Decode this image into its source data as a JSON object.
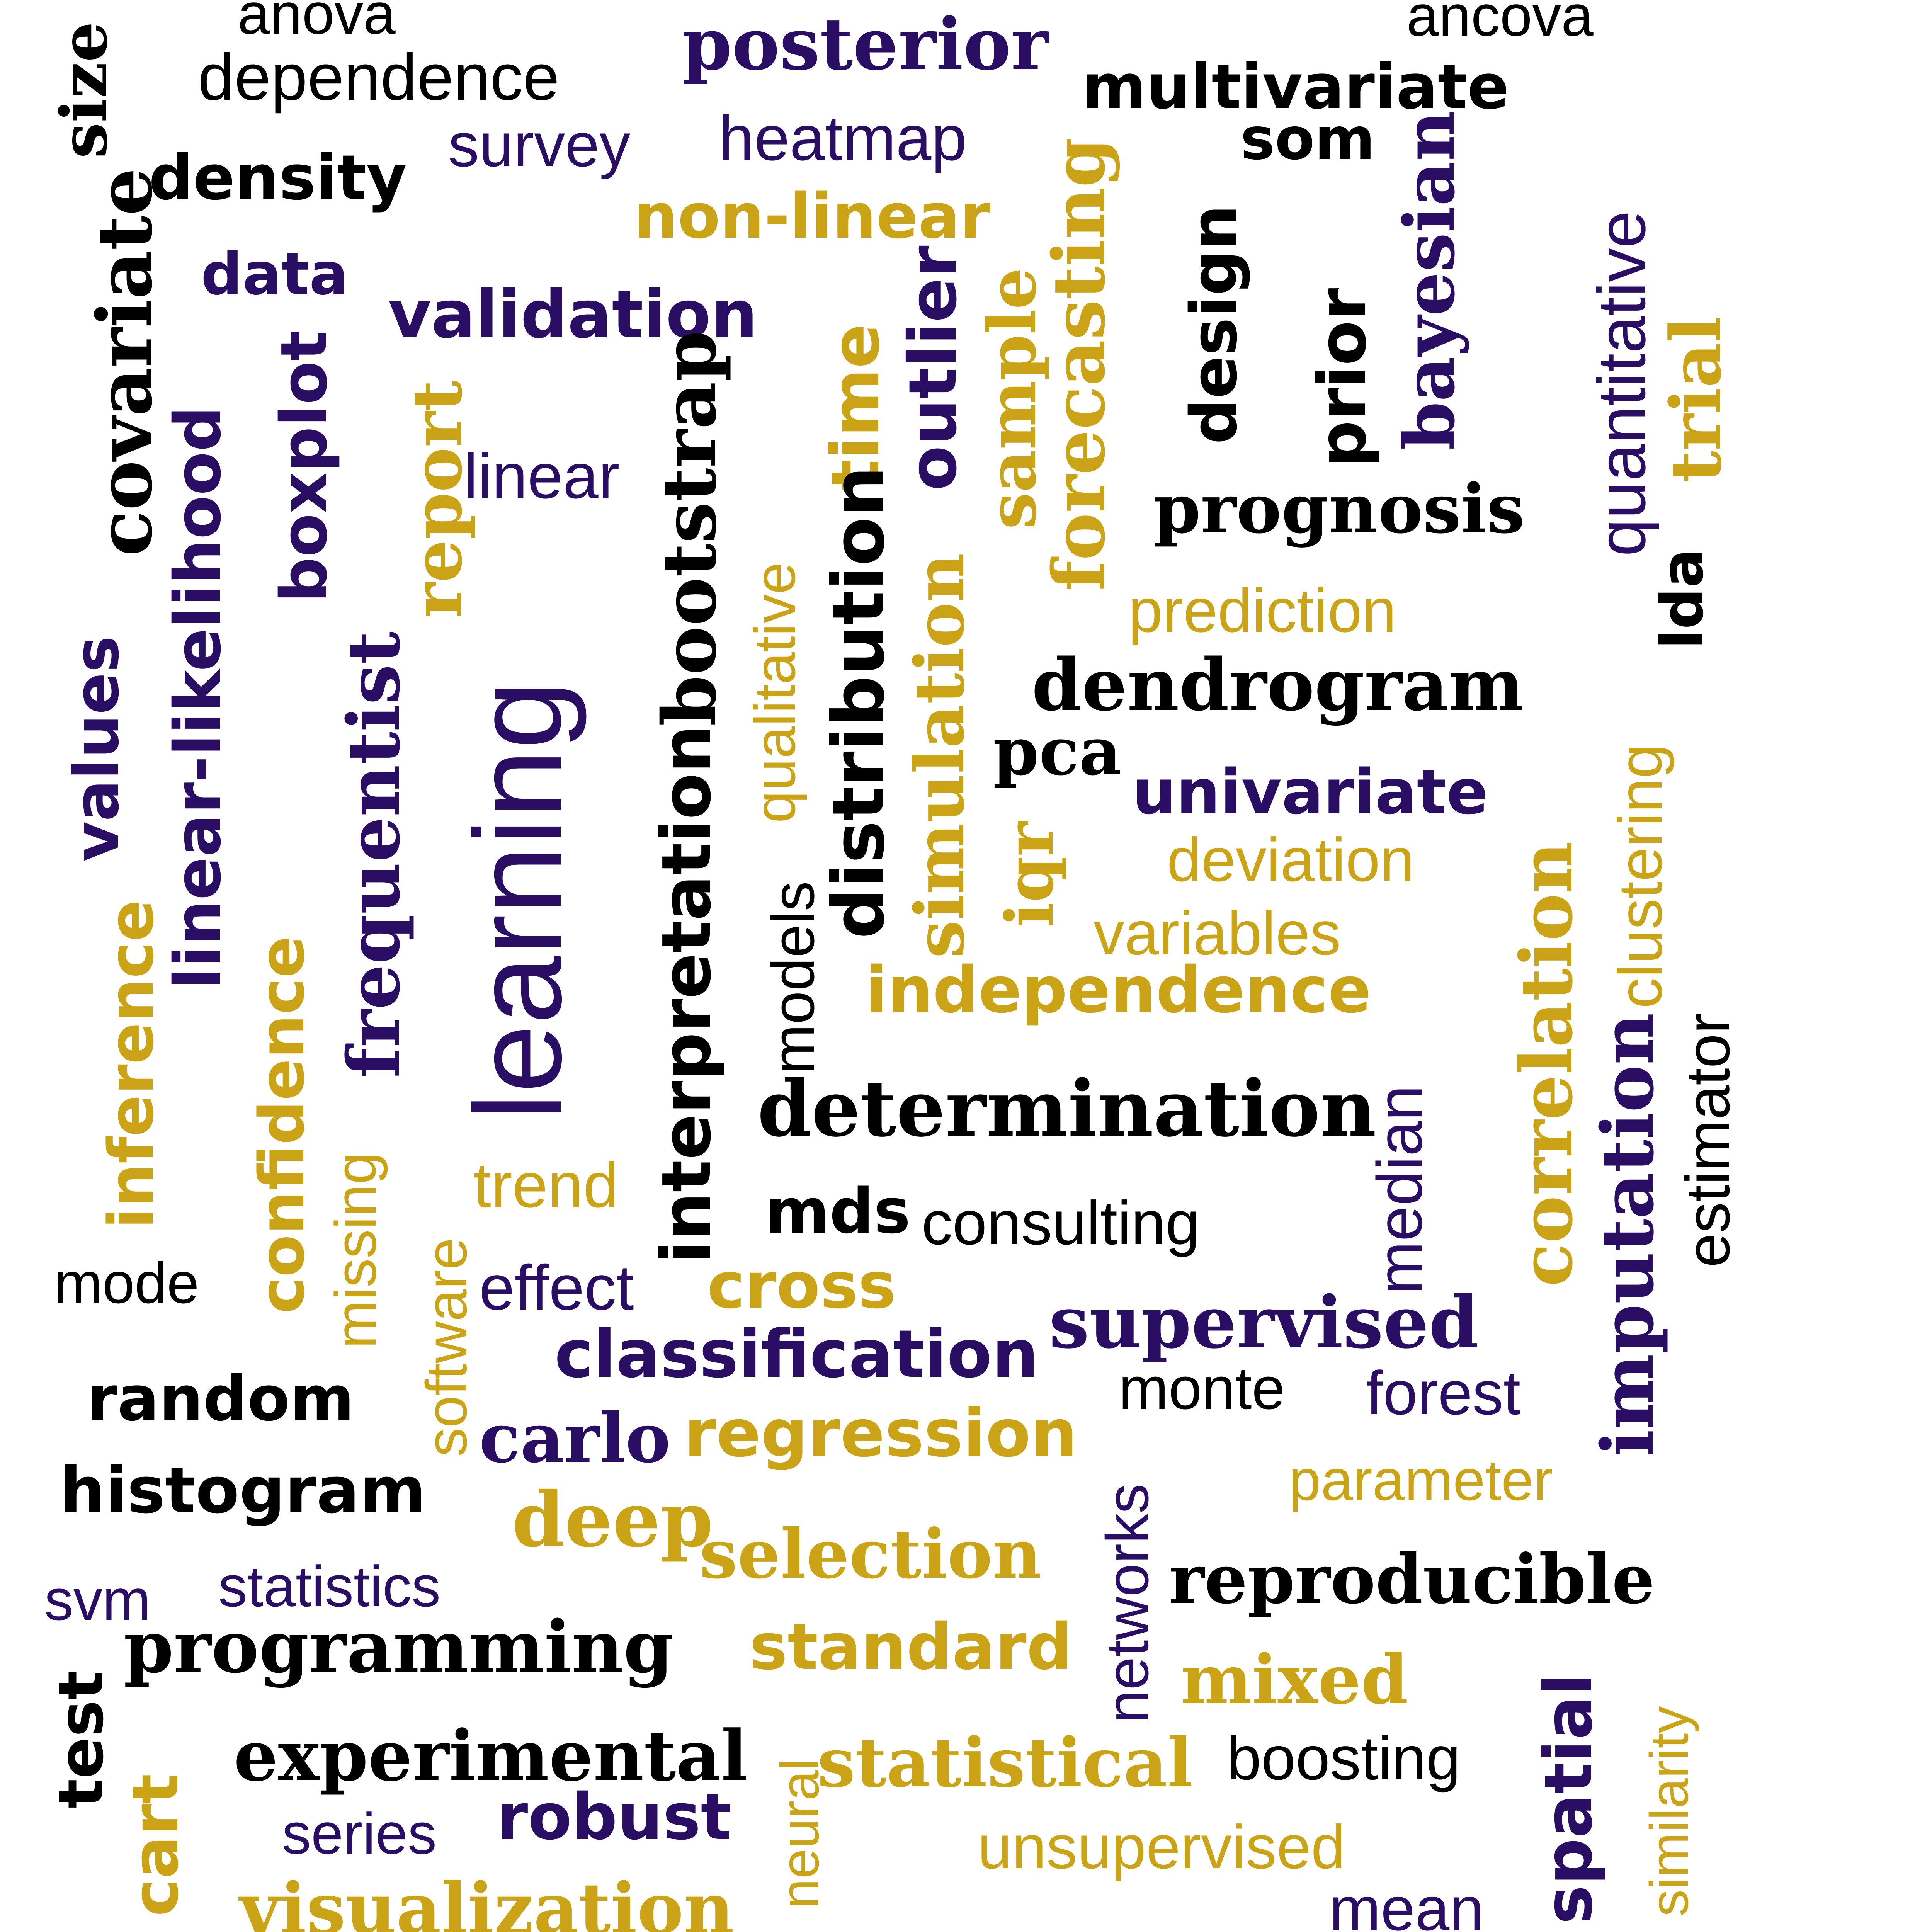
{
  "colors": {
    "black": "#000000",
    "purple": "#2a0e63",
    "gold": "#cba316"
  },
  "words": [
    {
      "text": "anova"
    },
    {
      "text": "dependence"
    },
    {
      "text": "posterior"
    },
    {
      "text": "ancova"
    },
    {
      "text": "multivariate"
    },
    {
      "text": "som"
    },
    {
      "text": "size"
    },
    {
      "text": "survey"
    },
    {
      "text": "heatmap"
    },
    {
      "text": "density"
    },
    {
      "text": "non-linear"
    },
    {
      "text": "data"
    },
    {
      "text": "validation"
    },
    {
      "text": "covariate"
    },
    {
      "text": "boxplot"
    },
    {
      "text": "linear-likelihood"
    },
    {
      "text": "report"
    },
    {
      "text": "linear"
    },
    {
      "text": "bootstrap"
    },
    {
      "text": "qualitative"
    },
    {
      "text": "time"
    },
    {
      "text": "outlier"
    },
    {
      "text": "sample"
    },
    {
      "text": "forecasting"
    },
    {
      "text": "design"
    },
    {
      "text": "prior"
    },
    {
      "text": "bayesian"
    },
    {
      "text": "quantitative"
    },
    {
      "text": "trial"
    },
    {
      "text": "prognosis"
    },
    {
      "text": "lda"
    },
    {
      "text": "prediction"
    },
    {
      "text": "dendrogram"
    },
    {
      "text": "values"
    },
    {
      "text": "learning"
    },
    {
      "text": "interpretation"
    },
    {
      "text": "distribution"
    },
    {
      "text": "frequentist"
    },
    {
      "text": "pca"
    },
    {
      "text": "univariate"
    },
    {
      "text": "simulation"
    },
    {
      "text": "iqr"
    },
    {
      "text": "deviation"
    },
    {
      "text": "models"
    },
    {
      "text": "clustering"
    },
    {
      "text": "variables"
    },
    {
      "text": "inference"
    },
    {
      "text": "confidence"
    },
    {
      "text": "independence"
    },
    {
      "text": "estimator"
    },
    {
      "text": "median"
    },
    {
      "text": "correlation"
    },
    {
      "text": "determination"
    },
    {
      "text": "imputation"
    },
    {
      "text": "missing"
    },
    {
      "text": "software"
    },
    {
      "text": "trend"
    },
    {
      "text": "mds"
    },
    {
      "text": "consulting"
    },
    {
      "text": "mode"
    },
    {
      "text": "effect"
    },
    {
      "text": "cross"
    },
    {
      "text": "supervised"
    },
    {
      "text": "classification"
    },
    {
      "text": "random"
    },
    {
      "text": "monte"
    },
    {
      "text": "forest"
    },
    {
      "text": "carlo"
    },
    {
      "text": "regression"
    },
    {
      "text": "networks"
    },
    {
      "text": "histogram"
    },
    {
      "text": "parameter"
    },
    {
      "text": "deep"
    },
    {
      "text": "selection"
    },
    {
      "text": "reproducible"
    },
    {
      "text": "svm"
    },
    {
      "text": "statistics"
    },
    {
      "text": "programming"
    },
    {
      "text": "standard"
    },
    {
      "text": "test"
    },
    {
      "text": "mixed"
    },
    {
      "text": "similarity"
    },
    {
      "text": "experimental"
    },
    {
      "text": "neural"
    },
    {
      "text": "statistical"
    },
    {
      "text": "boosting"
    },
    {
      "text": "spatial"
    },
    {
      "text": "cart"
    },
    {
      "text": "series"
    },
    {
      "text": "robust"
    },
    {
      "text": "unsupervised"
    },
    {
      "text": "visualization"
    },
    {
      "text": "mean"
    }
  ]
}
